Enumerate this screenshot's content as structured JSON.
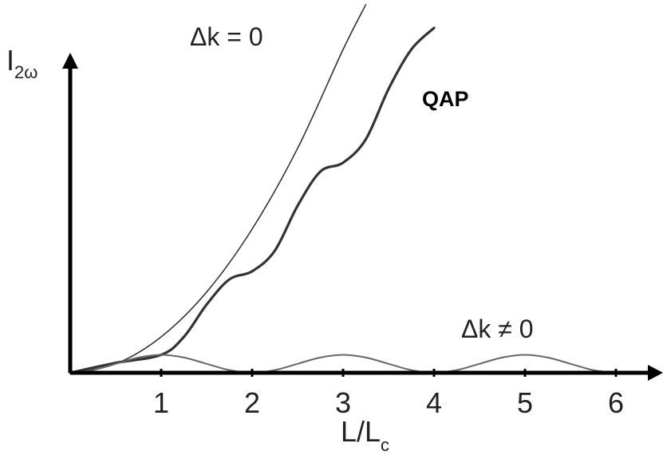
{
  "chart_data": {
    "type": "line",
    "title": "",
    "xlabel_main": "L/L",
    "xlabel_sub": "c",
    "ylabel_main": "I",
    "ylabel_sub": "2ω",
    "xlim": [
      0,
      6.4
    ],
    "ylim": [
      0,
      20
    ],
    "xticks": [
      "1",
      "2",
      "3",
      "4",
      "5",
      "6"
    ],
    "grid": false,
    "series": [
      {
        "name": "Δk = 0",
        "color": "#333333",
        "x": [
          0,
          0.5,
          1,
          1.5,
          2,
          2.5,
          3,
          3.25
        ],
        "y": [
          0,
          0.5,
          2,
          4.5,
          8,
          12.5,
          18,
          20.5
        ]
      },
      {
        "name": "QAP",
        "color": "#333333",
        "x": [
          0,
          0.5,
          1,
          1.25,
          1.5,
          1.75,
          2,
          2.25,
          2.5,
          2.75,
          3,
          3.25,
          3.5,
          3.75,
          4
        ],
        "y": [
          0,
          0.55,
          1.0,
          2.0,
          3.8,
          5.2,
          5.65,
          6.8,
          9.3,
          11.2,
          11.7,
          13.0,
          15.8,
          18.0,
          19.2
        ]
      },
      {
        "name": "Δk ≠ 0",
        "color": "#666666",
        "x": [
          0,
          0.25,
          0.5,
          0.75,
          1,
          1.25,
          1.5,
          1.75,
          2,
          2.25,
          2.5,
          2.75,
          3,
          3.25,
          3.5,
          3.75,
          4,
          4.25,
          4.5,
          4.75,
          5,
          5.25,
          5.5,
          5.75,
          6
        ],
        "y": [
          0,
          0.15,
          0.5,
          0.85,
          1.0,
          0.85,
          0.5,
          0.15,
          0,
          0.15,
          0.5,
          0.85,
          1.0,
          0.85,
          0.5,
          0.15,
          0,
          0.15,
          0.5,
          0.85,
          1.0,
          0.85,
          0.5,
          0.15,
          0
        ]
      }
    ]
  }
}
